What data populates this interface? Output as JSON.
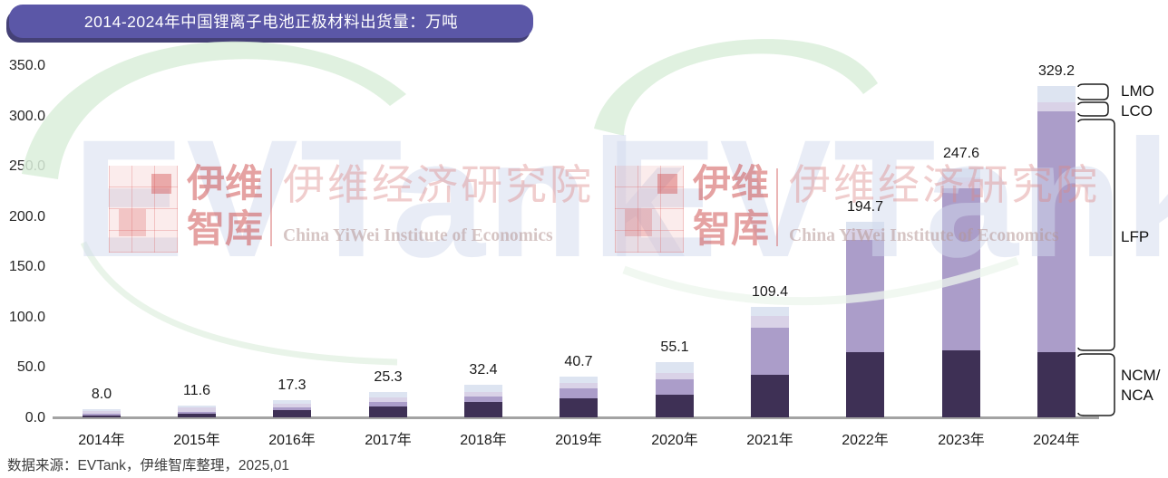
{
  "header": {
    "title": "2014-2024年中国锂离子电池正极材料出货量：万吨"
  },
  "footer": {
    "source": "数据来源：EVTank，伊维智库整理，2025,01"
  },
  "chart_data": {
    "type": "bar",
    "stacked": true,
    "title": "2014-2024年中国锂离子电池正极材料出货量：万吨",
    "unit": "万吨",
    "categories": [
      "2014年",
      "2015年",
      "2016年",
      "2017年",
      "2018年",
      "2019年",
      "2020年",
      "2021年",
      "2022年",
      "2023年",
      "2024年"
    ],
    "totals": [
      8.0,
      11.6,
      17.3,
      25.3,
      32.4,
      40.7,
      55.1,
      109.4,
      194.7,
      247.6,
      329.2
    ],
    "series": [
      {
        "name": "NCM/NCA",
        "color": "#3e3055",
        "values": [
          2.2,
          4.0,
          7.0,
          10.8,
          15.6,
          19.2,
          22.3,
          42.0,
          65.0,
          66.5,
          64.7
        ]
      },
      {
        "name": "LFP",
        "color": "#ab9dc9",
        "values": [
          1.0,
          1.8,
          2.8,
          4.1,
          5.1,
          9.5,
          15.3,
          46.7,
          111.7,
          161.3,
          239.3
        ]
      },
      {
        "name": "LCO",
        "color": "#d9d2e7",
        "values": [
          3.2,
          3.8,
          4.1,
          4.9,
          4.2,
          5.5,
          6.5,
          11.7,
          10.8,
          10.8,
          9.5
        ]
      },
      {
        "name": "LMO",
        "color": "#dde4f1",
        "values": [
          1.6,
          2.0,
          3.4,
          5.5,
          7.5,
          6.5,
          11.0,
          9.0,
          7.2,
          9.0,
          15.7
        ]
      }
    ],
    "y_axis": {
      "min": 0,
      "max": 350,
      "step": 50,
      "tick_labels": [
        "350.0",
        "300.0",
        "250.0",
        "200.0",
        "150.0",
        "100.0",
        "50.0",
        "0.0"
      ]
    },
    "right_labels": [
      "LMO",
      "LCO",
      "LFP",
      "NCM/NCA"
    ],
    "legend_position": "right-braces",
    "grid": false
  },
  "watermark": {
    "brand_text": "EVTank",
    "logo_text_top": "伊维",
    "logo_text_bottom": "智库",
    "institute_cn": "伊维经济研究院",
    "institute_en": "China YiWei Institute of Economics"
  },
  "colors": {
    "banner_bg": "#5b57a7",
    "banner_shadow": "#454177",
    "banner_text": "#ffffff",
    "axis_line": "#a3a3a3",
    "tick_text": "#262626",
    "data_label_text": "#1a1a1a",
    "brace_stroke": "#1f1f1f",
    "swoosh_green": "#daeeda"
  }
}
